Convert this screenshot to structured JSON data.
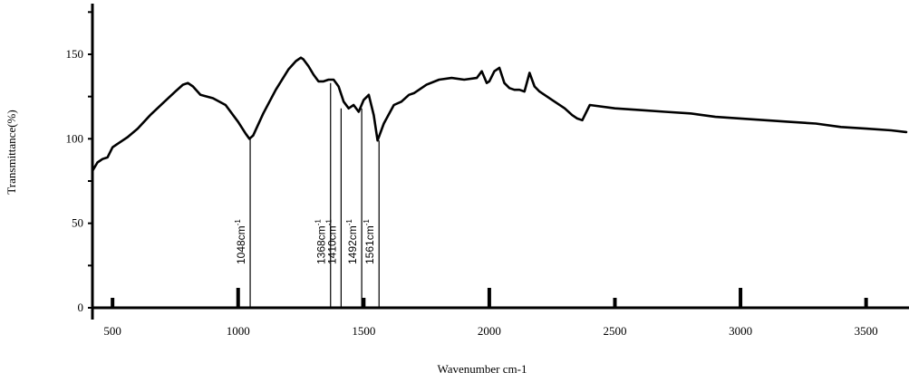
{
  "chart_data": {
    "type": "line",
    "title": "",
    "xlabel": "Wavenumber cm-1",
    "ylabel": "Transmittance(%)",
    "xlim": [
      420,
      3660
    ],
    "ylim": [
      0,
      180
    ],
    "x_ticks": [
      500,
      1000,
      1500,
      2000,
      2500,
      3000,
      3500
    ],
    "x_tick_labels": [
      "500",
      "1000",
      "1500",
      "2000",
      "2500",
      "3000",
      "3500"
    ],
    "y_ticks": [
      0,
      50,
      100,
      150
    ],
    "y_tick_labels": [
      "0",
      "50",
      "100",
      "150"
    ],
    "grid": false,
    "series": [
      {
        "x": [
          420,
          440,
          460,
          480,
          500,
          520,
          540,
          560,
          600,
          650,
          700,
          750,
          780,
          800,
          820,
          850,
          900,
          950,
          1000,
          1030,
          1045,
          1060,
          1100,
          1150,
          1200,
          1230,
          1250,
          1260,
          1280,
          1300,
          1320,
          1340,
          1360,
          1380,
          1400,
          1420,
          1440,
          1460,
          1480,
          1500,
          1520,
          1540,
          1555,
          1580,
          1620,
          1650,
          1680,
          1700,
          1750,
          1800,
          1850,
          1900,
          1950,
          1970,
          1990,
          2000,
          2020,
          2040,
          2060,
          2080,
          2100,
          2120,
          2140,
          2160,
          2180,
          2200,
          2250,
          2300,
          2330,
          2350,
          2370,
          2400,
          2500,
          2600,
          2700,
          2800,
          2900,
          3000,
          3100,
          3200,
          3300,
          3400,
          3500,
          3600,
          3660
        ],
        "y": [
          81,
          86,
          88,
          89,
          95,
          97,
          99,
          101,
          106,
          114,
          121,
          128,
          132,
          133,
          131,
          126,
          124,
          120,
          110,
          103,
          100,
          102,
          115,
          129,
          141,
          146,
          148,
          147,
          143,
          138,
          134,
          134,
          135,
          135,
          131,
          122,
          118,
          120,
          116,
          123,
          126,
          114,
          99,
          109,
          120,
          122,
          126,
          127,
          132,
          135,
          136,
          135,
          136,
          140,
          133,
          134,
          140,
          142,
          133,
          130,
          129,
          129,
          128,
          139,
          131,
          128,
          123,
          118,
          114,
          112,
          111,
          120,
          118,
          117,
          116,
          115,
          113,
          112,
          111,
          110,
          109,
          107,
          106,
          105,
          104
        ]
      }
    ],
    "annotations": [
      {
        "x": 1048,
        "y": 100,
        "label": "1048cm",
        "superscript": "-1"
      },
      {
        "x": 1368,
        "y": 133,
        "label": "1368cm",
        "superscript": "-1"
      },
      {
        "x": 1410,
        "y": 118,
        "label": "1410cm",
        "superscript": "-1"
      },
      {
        "x": 1492,
        "y": 118,
        "label": "1492cm",
        "superscript": "-1"
      },
      {
        "x": 1561,
        "y": 99,
        "label": "1561cm",
        "superscript": "-1"
      }
    ]
  }
}
